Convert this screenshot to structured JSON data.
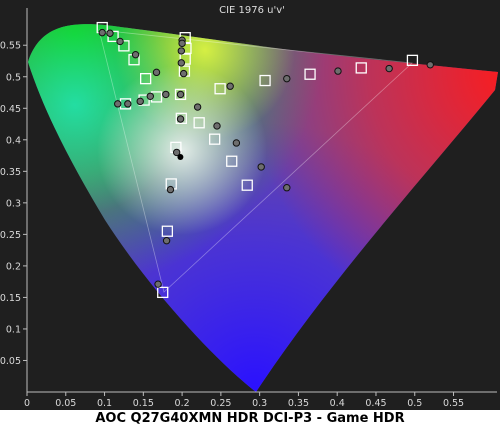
{
  "chart_data": {
    "type": "scatter",
    "title": "CIE 1976 u'v'",
    "caption": "AOC Q27G40XMN HDR DCI-P3 - Game HDR",
    "xlabel": "",
    "ylabel": "",
    "xlim": [
      0,
      0.6
    ],
    "ylim": [
      0,
      0.6
    ],
    "x_ticks": [
      "0",
      "0.05",
      "0.1",
      "0.15",
      "0.2",
      "0.25",
      "0.3",
      "0.35",
      "0.4",
      "0.45",
      "0.5",
      "0.55"
    ],
    "y_ticks": [
      "0.05",
      "0.1",
      "0.15",
      "0.2",
      "0.25",
      "0.3",
      "0.35",
      "0.4",
      "0.45",
      "0.5",
      "0.55"
    ],
    "grid": false,
    "legend": "none",
    "series": [
      {
        "marker": "square",
        "points": [
          [
            0.097,
            0.578
          ],
          [
            0.111,
            0.564
          ],
          [
            0.125,
            0.549
          ],
          [
            0.138,
            0.527
          ],
          [
            0.153,
            0.497
          ],
          [
            0.204,
            0.562
          ],
          [
            0.205,
            0.545
          ],
          [
            0.204,
            0.528
          ],
          [
            0.203,
            0.509
          ],
          [
            0.497,
            0.526
          ],
          [
            0.431,
            0.514
          ],
          [
            0.365,
            0.504
          ],
          [
            0.307,
            0.494
          ],
          [
            0.249,
            0.481
          ],
          [
            0.127,
            0.457
          ],
          [
            0.151,
            0.463
          ],
          [
            0.167,
            0.468
          ],
          [
            0.284,
            0.328
          ],
          [
            0.264,
            0.366
          ],
          [
            0.242,
            0.401
          ],
          [
            0.222,
            0.427
          ],
          [
            0.199,
            0.434
          ],
          [
            0.175,
            0.158
          ],
          [
            0.181,
            0.255
          ],
          [
            0.186,
            0.33
          ],
          [
            0.192,
            0.388
          ],
          [
            0.198,
            0.472
          ]
        ]
      },
      {
        "marker": "circle",
        "points": [
          [
            0.097,
            0.57
          ],
          [
            0.107,
            0.569
          ],
          [
            0.12,
            0.556
          ],
          [
            0.14,
            0.535
          ],
          [
            0.167,
            0.507
          ],
          [
            0.2,
            0.558
          ],
          [
            0.2,
            0.553
          ],
          [
            0.199,
            0.541
          ],
          [
            0.199,
            0.522
          ],
          [
            0.202,
            0.505
          ],
          [
            0.52,
            0.519
          ],
          [
            0.467,
            0.513
          ],
          [
            0.401,
            0.509
          ],
          [
            0.335,
            0.497
          ],
          [
            0.262,
            0.485
          ],
          [
            0.117,
            0.457
          ],
          [
            0.13,
            0.457
          ],
          [
            0.146,
            0.461
          ],
          [
            0.159,
            0.469
          ],
          [
            0.179,
            0.472
          ],
          [
            0.335,
            0.324
          ],
          [
            0.302,
            0.357
          ],
          [
            0.27,
            0.395
          ],
          [
            0.245,
            0.422
          ],
          [
            0.22,
            0.452
          ],
          [
            0.169,
            0.171
          ],
          [
            0.18,
            0.24
          ],
          [
            0.185,
            0.321
          ],
          [
            0.193,
            0.38
          ],
          [
            0.198,
            0.433
          ],
          [
            0.198,
            0.472
          ]
        ]
      },
      {
        "marker": "dot",
        "points": [
          [
            0.1978,
            0.3728
          ]
        ]
      }
    ]
  }
}
